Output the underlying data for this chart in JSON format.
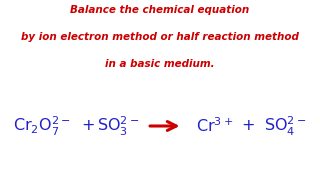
{
  "background_color": "#ffffff",
  "title_lines": [
    "Balance the chemical equation",
    "by ion electron method or half reaction method",
    "in a basic medium."
  ],
  "title_color": "#cc0000",
  "title_fontsize": 7.5,
  "equation_color": "#2222cc",
  "arrow_color": "#cc0000",
  "figsize": [
    3.2,
    1.8
  ],
  "dpi": 100
}
